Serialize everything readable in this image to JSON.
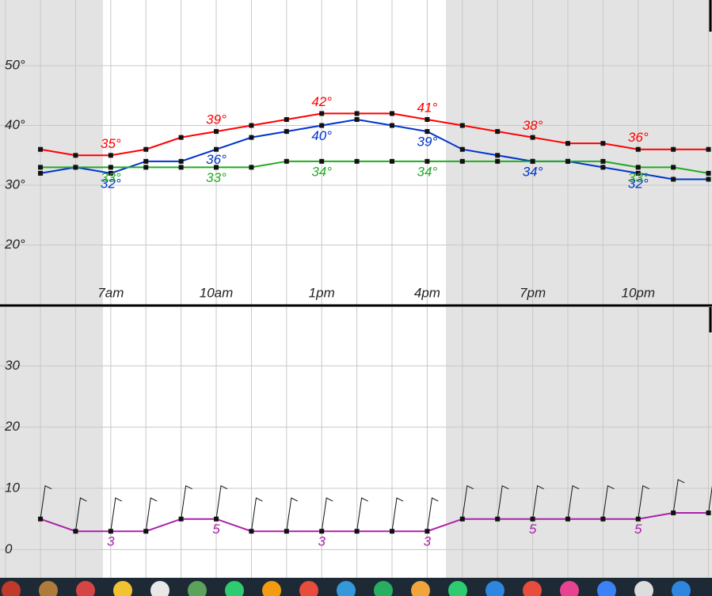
{
  "chart_data": [
    {
      "type": "line",
      "x": [
        5,
        6,
        7,
        8,
        9,
        10,
        11,
        12,
        13,
        14,
        15,
        16,
        17,
        18,
        19,
        20,
        21,
        22,
        23,
        24
      ],
      "xlim": [
        3.85,
        24.1
      ],
      "xticks": [
        {
          "value": 7,
          "label": "7am"
        },
        {
          "value": 10,
          "label": "10am"
        },
        {
          "value": 13,
          "label": "1pm"
        },
        {
          "value": 16,
          "label": "4pm"
        },
        {
          "value": 19,
          "label": "7pm"
        },
        {
          "value": 22,
          "label": "10pm"
        }
      ],
      "ylim": [
        10,
        61
      ],
      "yticks": [
        {
          "value": 20,
          "label": "20°"
        },
        {
          "value": 30,
          "label": "30°"
        },
        {
          "value": 40,
          "label": "40°"
        },
        {
          "value": 50,
          "label": "50°"
        }
      ],
      "grid": true,
      "series": [
        {
          "color": "#ff0000",
          "label_side": "above",
          "values": [
            36,
            35,
            35,
            36,
            38,
            39,
            40,
            41,
            42,
            42,
            42,
            41,
            40,
            39,
            38,
            37,
            37,
            36,
            36,
            36
          ],
          "value_labels": [
            null,
            null,
            "35°",
            null,
            null,
            "39°",
            null,
            null,
            "42°",
            null,
            null,
            "41°",
            null,
            null,
            "38°",
            null,
            null,
            "36°",
            null,
            null
          ]
        },
        {
          "color": "#0033cc",
          "label_side": "below",
          "values": [
            32,
            33,
            32,
            34,
            34,
            36,
            38,
            39,
            40,
            41,
            40,
            39,
            36,
            35,
            34,
            34,
            33,
            32,
            31,
            31
          ],
          "value_labels": [
            null,
            null,
            "32°",
            null,
            null,
            "36°",
            null,
            null,
            "40°",
            null,
            null,
            "39°",
            null,
            null,
            "34°",
            null,
            null,
            "32°",
            null,
            null
          ]
        },
        {
          "color": "#22aa22",
          "label_side": "below",
          "values": [
            33,
            33,
            33,
            33,
            33,
            33,
            33,
            34,
            34,
            34,
            34,
            34,
            34,
            34,
            34,
            34,
            34,
            33,
            33,
            32
          ],
          "value_labels": [
            null,
            null,
            "33°",
            null,
            null,
            "33°",
            null,
            null,
            "34°",
            null,
            null,
            "34°",
            null,
            null,
            null,
            null,
            null,
            "33°",
            null,
            null
          ]
        }
      ]
    },
    {
      "type": "line",
      "x": [
        5,
        6,
        7,
        8,
        9,
        10,
        11,
        12,
        13,
        14,
        15,
        16,
        17,
        18,
        19,
        20,
        21,
        22,
        23,
        24
      ],
      "xlim": [
        3.85,
        24.1
      ],
      "ylim": [
        -4.6,
        39.6
      ],
      "yticks": [
        0,
        10,
        20,
        30
      ],
      "grid": true,
      "series": [
        {
          "color": "#aa22aa",
          "label_side": "below",
          "values": [
            5,
            3,
            3,
            3,
            5,
            5,
            3,
            3,
            3,
            3,
            3,
            3,
            5,
            5,
            5,
            5,
            5,
            5,
            6,
            6
          ],
          "value_labels": [
            null,
            null,
            "3",
            null,
            null,
            "5",
            null,
            null,
            "3",
            null,
            null,
            "3",
            null,
            null,
            "5",
            null,
            null,
            "5",
            null,
            null
          ]
        }
      ]
    }
  ]
}
